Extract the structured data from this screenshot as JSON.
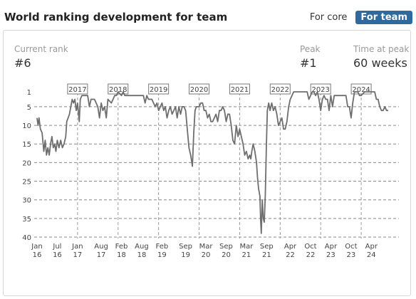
{
  "header": {
    "title": "World ranking development for team",
    "toggle": {
      "core_label": "For core",
      "team_label": "For team",
      "active": "team"
    }
  },
  "stats": {
    "current_rank_label": "Current rank",
    "current_rank_value": "#6",
    "peak_label": "Peak",
    "peak_value": "#1",
    "time_at_peak_label": "Time at peak",
    "time_at_peak_value": "60 weeks"
  },
  "chart_data": {
    "type": "line",
    "title": "",
    "xlabel": "",
    "ylabel": "",
    "y_inverted": true,
    "ylim": [
      1,
      40
    ],
    "y_ticks": [
      1,
      5,
      10,
      15,
      20,
      25,
      30,
      35,
      40
    ],
    "grid": "horizontal dashed",
    "line_color": "#6e6e6e",
    "x_ticks": [
      {
        "t": 0,
        "line1": "Jan",
        "line2": "16"
      },
      {
        "t": 6,
        "line1": "Jul",
        "line2": "16"
      },
      {
        "t": 12,
        "line1": "Jan",
        "line2": "17"
      },
      {
        "t": 19,
        "line1": "Aug",
        "line2": "17"
      },
      {
        "t": 25,
        "line1": "Feb",
        "line2": "18"
      },
      {
        "t": 31,
        "line1": "Aug",
        "line2": "18"
      },
      {
        "t": 37,
        "line1": "Feb",
        "line2": "19"
      },
      {
        "t": 44,
        "line1": "Sep",
        "line2": "19"
      },
      {
        "t": 50,
        "line1": "Mar",
        "line2": "20"
      },
      {
        "t": 56,
        "line1": "Sep",
        "line2": "20"
      },
      {
        "t": 62,
        "line1": "Mar",
        "line2": "21"
      },
      {
        "t": 68,
        "line1": "Sep",
        "line2": "21"
      },
      {
        "t": 75,
        "line1": "Apr",
        "line2": "22"
      },
      {
        "t": 81,
        "line1": "Oct",
        "line2": "22"
      },
      {
        "t": 87,
        "line1": "Apr",
        "line2": "23"
      },
      {
        "t": 93,
        "line1": "Oct",
        "line2": "23"
      },
      {
        "t": 99,
        "line1": "Apr",
        "line2": "24"
      }
    ],
    "year_markers": [
      {
        "t": 12,
        "label": "2017"
      },
      {
        "t": 24,
        "label": "2018"
      },
      {
        "t": 36,
        "label": "2019"
      },
      {
        "t": 48,
        "label": "2020"
      },
      {
        "t": 60,
        "label": "2021"
      },
      {
        "t": 72,
        "label": "2022"
      },
      {
        "t": 84,
        "label": "2023"
      },
      {
        "t": 96,
        "label": "2024"
      }
    ],
    "series": [
      {
        "points": [
          [
            0,
            8
          ],
          [
            0.3,
            10
          ],
          [
            0.6,
            8
          ],
          [
            1,
            11
          ],
          [
            1.5,
            12
          ],
          [
            2,
            17
          ],
          [
            2.4,
            14
          ],
          [
            2.8,
            18
          ],
          [
            3.2,
            16
          ],
          [
            3.6,
            18
          ],
          [
            4,
            15
          ],
          [
            4.4,
            13
          ],
          [
            4.8,
            16
          ],
          [
            5.2,
            15
          ],
          [
            5.6,
            17
          ],
          [
            6,
            14
          ],
          [
            6.5,
            16
          ],
          [
            7,
            14
          ],
          [
            7.5,
            16
          ],
          [
            8,
            15
          ],
          [
            8.5,
            13
          ],
          [
            8.8,
            9
          ],
          [
            9.2,
            8
          ],
          [
            9.6,
            7
          ],
          [
            10,
            5
          ],
          [
            10.4,
            3
          ],
          [
            10.8,
            4
          ],
          [
            11.2,
            3
          ],
          [
            11.6,
            6
          ],
          [
            12,
            4
          ],
          [
            12.5,
            9
          ],
          [
            12.8,
            3
          ],
          [
            13.3,
            2
          ],
          [
            14,
            2
          ],
          [
            15,
            2
          ],
          [
            15.5,
            5
          ],
          [
            16,
            3
          ],
          [
            17,
            3
          ],
          [
            17.5,
            4
          ],
          [
            18,
            5
          ],
          [
            18.5,
            8
          ],
          [
            19,
            4
          ],
          [
            19.5,
            6
          ],
          [
            20,
            5
          ],
          [
            20.5,
            8
          ],
          [
            21,
            3
          ],
          [
            22,
            4
          ],
          [
            22.5,
            3
          ],
          [
            23,
            2
          ],
          [
            23.5,
            2
          ],
          [
            24,
            1
          ],
          [
            25,
            2
          ],
          [
            25.5,
            1
          ],
          [
            26,
            2
          ],
          [
            27,
            2
          ],
          [
            28,
            2
          ],
          [
            29,
            2
          ],
          [
            30,
            2
          ],
          [
            31,
            2
          ],
          [
            31.5,
            2
          ],
          [
            32,
            4
          ],
          [
            32.5,
            2
          ],
          [
            33,
            3
          ],
          [
            34,
            3
          ],
          [
            35,
            5
          ],
          [
            35.5,
            4
          ],
          [
            36,
            6
          ],
          [
            37,
            4
          ],
          [
            37.5,
            6
          ],
          [
            38,
            5
          ],
          [
            38.5,
            8
          ],
          [
            39,
            6
          ],
          [
            39.5,
            5
          ],
          [
            40,
            7
          ],
          [
            40.5,
            6
          ],
          [
            41,
            5
          ],
          [
            41.5,
            8
          ],
          [
            42,
            5
          ],
          [
            42.5,
            7
          ],
          [
            43,
            5
          ],
          [
            43.5,
            5
          ],
          [
            44,
            6
          ],
          [
            44.5,
            11
          ],
          [
            45,
            16
          ],
          [
            45.5,
            18
          ],
          [
            46,
            21
          ],
          [
            46.4,
            12
          ],
          [
            46.8,
            6
          ],
          [
            47.2,
            5
          ],
          [
            48,
            5
          ],
          [
            48.5,
            4
          ],
          [
            49,
            4
          ],
          [
            49.5,
            6
          ],
          [
            50,
            6
          ],
          [
            50.5,
            8
          ],
          [
            51,
            7
          ],
          [
            51.5,
            9
          ],
          [
            52,
            9
          ],
          [
            52.5,
            8
          ],
          [
            53,
            7
          ],
          [
            53.5,
            9
          ],
          [
            54,
            6
          ],
          [
            54.5,
            6
          ],
          [
            55,
            5
          ],
          [
            55.5,
            6
          ],
          [
            56,
            9
          ],
          [
            56.5,
            7
          ],
          [
            57,
            7
          ],
          [
            57.5,
            10
          ],
          [
            58,
            14
          ],
          [
            58.5,
            15
          ],
          [
            59,
            10
          ],
          [
            59.5,
            13
          ],
          [
            60,
            11
          ],
          [
            60.5,
            13
          ],
          [
            61,
            15
          ],
          [
            61.5,
            18
          ],
          [
            62,
            17
          ],
          [
            62.5,
            19
          ],
          [
            63,
            18
          ],
          [
            63.3,
            19
          ],
          [
            63.6,
            17
          ],
          [
            64,
            15
          ],
          [
            64.5,
            17
          ],
          [
            65,
            20
          ],
          [
            65.3,
            24
          ],
          [
            65.6,
            27
          ],
          [
            66,
            29
          ],
          [
            66.2,
            35
          ],
          [
            66.4,
            39
          ],
          [
            66.7,
            30
          ],
          [
            67,
            35
          ],
          [
            67.3,
            36
          ],
          [
            67.6,
            29
          ],
          [
            67.9,
            16
          ],
          [
            68.2,
            6
          ],
          [
            68.6,
            4
          ],
          [
            69,
            6
          ],
          [
            69.5,
            4
          ],
          [
            70,
            6
          ],
          [
            70.5,
            5
          ],
          [
            71,
            7
          ],
          [
            71.5,
            10
          ],
          [
            72,
            9
          ],
          [
            72.5,
            8
          ],
          [
            73,
            11
          ],
          [
            73.5,
            11
          ],
          [
            74,
            9
          ],
          [
            74.5,
            5
          ],
          [
            75,
            3
          ],
          [
            75.5,
            2
          ],
          [
            76,
            1
          ],
          [
            77,
            1
          ],
          [
            78,
            1
          ],
          [
            79,
            1
          ],
          [
            80,
            1
          ],
          [
            80.5,
            3
          ],
          [
            81,
            2
          ],
          [
            81.5,
            1
          ],
          [
            82,
            1
          ],
          [
            82.5,
            2
          ],
          [
            83,
            1
          ],
          [
            83.5,
            3
          ],
          [
            84,
            6
          ],
          [
            84.5,
            3
          ],
          [
            85,
            2
          ],
          [
            85.5,
            3
          ],
          [
            86,
            3
          ],
          [
            86.5,
            6
          ],
          [
            87,
            2
          ],
          [
            87.5,
            5
          ],
          [
            88,
            2
          ],
          [
            89,
            2
          ],
          [
            90,
            2
          ],
          [
            91,
            2
          ],
          [
            91.5,
            2
          ],
          [
            92,
            5
          ],
          [
            92.5,
            5
          ],
          [
            93,
            8
          ],
          [
            93.5,
            4
          ],
          [
            94,
            1
          ],
          [
            95,
            1
          ],
          [
            95.5,
            2
          ],
          [
            96,
            2
          ],
          [
            97,
            1
          ],
          [
            98,
            1
          ],
          [
            99,
            1
          ],
          [
            100,
            1
          ],
          [
            100.5,
            3
          ],
          [
            101,
            3
          ],
          [
            101.5,
            5
          ],
          [
            102,
            6
          ],
          [
            102.5,
            6
          ],
          [
            103,
            5
          ],
          [
            103.5,
            6
          ],
          [
            104,
            6
          ]
        ]
      }
    ]
  }
}
